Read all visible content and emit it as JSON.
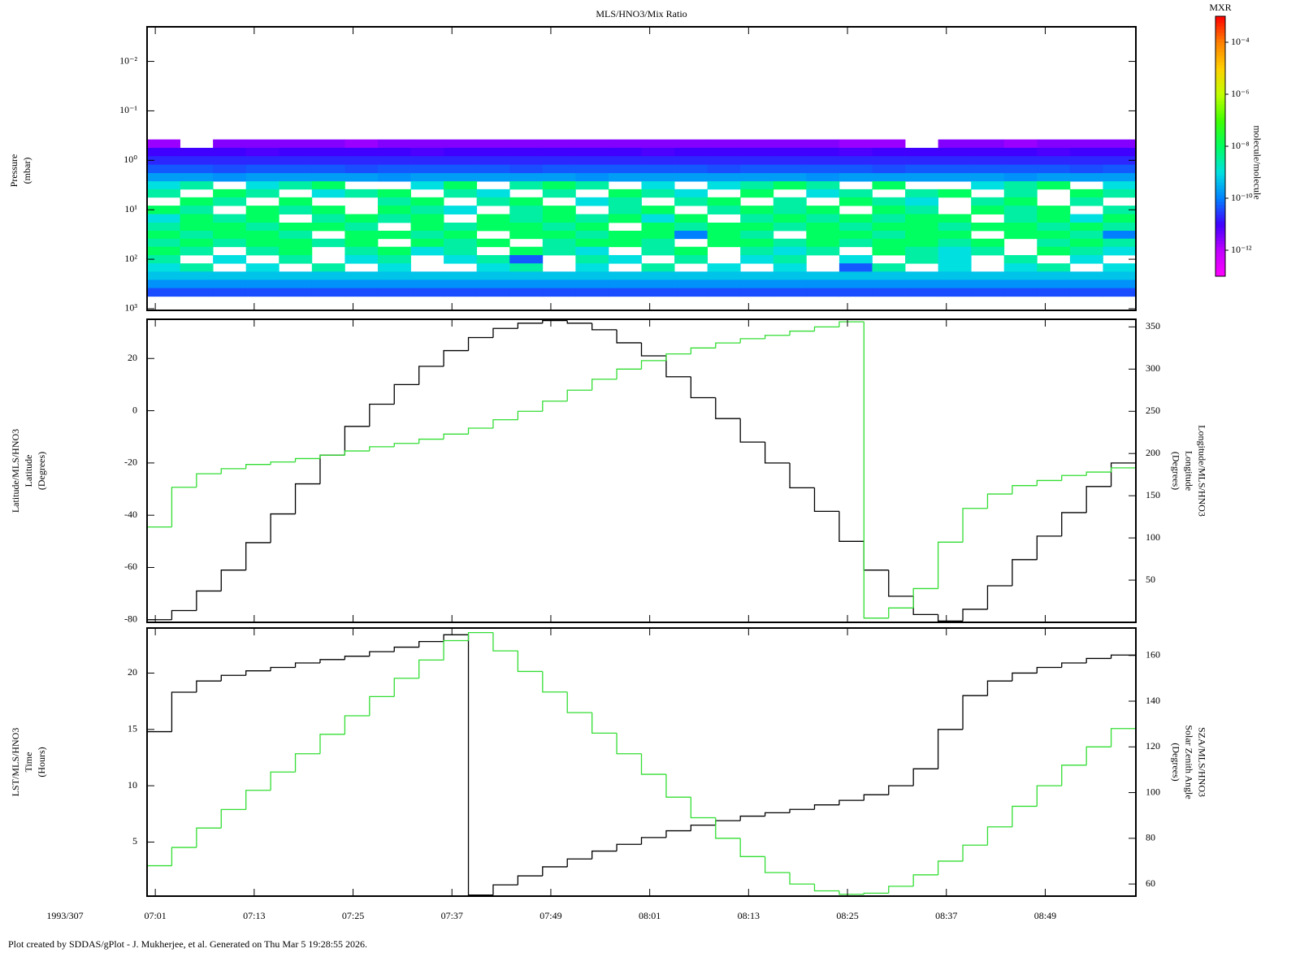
{
  "xaxis": {
    "xlim": [
      "07:00",
      "09:00"
    ],
    "xticks": [
      "07:01",
      "07:13",
      "07:25",
      "07:37",
      "07:49",
      "08:01",
      "08:13",
      "08:25",
      "08:37",
      "08:49"
    ],
    "date_label": "1993/307"
  },
  "footer": "Plot created by SDDAS/gPlot - J. Mukherjee, et al.  Generated on Thu Mar 5 19:28:55 2026.",
  "chart_data": [
    {
      "type": "heatmap",
      "title": "MLS/HNO3/Mix Ratio",
      "ylabel": [
        "Pressure",
        "(mbar)"
      ],
      "log_y": true,
      "y_inverted": true,
      "ylim": [
        0.002,
        1080
      ],
      "yticks": [
        {
          "value": 0.01,
          "label": "10⁻²"
        },
        {
          "value": 0.1,
          "label": "10⁻¹"
        },
        {
          "value": 1,
          "label": "10⁰"
        },
        {
          "value": 10,
          "label": "10¹"
        },
        {
          "value": 100,
          "label": "10²"
        },
        {
          "value": 1000,
          "label": "10³"
        }
      ],
      "x_bins": [
        "07:00",
        "07:04",
        "07:08",
        "07:12",
        "07:16",
        "07:20",
        "07:24",
        "07:28",
        "07:32",
        "07:36",
        "07:40",
        "07:44",
        "07:48",
        "07:52",
        "07:56",
        "08:00",
        "08:04",
        "08:08",
        "08:12",
        "08:16",
        "08:20",
        "08:24",
        "08:28",
        "08:32",
        "08:36",
        "08:40",
        "08:44",
        "08:48",
        "08:52",
        "08:56",
        "09:00"
      ],
      "y": [
        0.46,
        0.68,
        1.0,
        1.5,
        2.2,
        3.2,
        4.6,
        6.8,
        10,
        15,
        22,
        32,
        46,
        68,
        100,
        147,
        215,
        316,
        464
      ],
      "z": [
        [
          2e-12,
          null,
          3e-12,
          3e-12,
          3e-12,
          3e-12,
          2e-12,
          3e-12,
          3e-12,
          3e-12,
          3e-12,
          3e-12,
          3e-12,
          3e-12,
          3e-12,
          3e-12,
          3e-12,
          3e-12,
          3e-12,
          3e-12,
          3e-12,
          2e-12,
          2e-12,
          null,
          3e-12,
          3e-12,
          2e-12,
          3e-12,
          3e-12,
          3e-12
        ],
        [
          1e-11,
          1e-11,
          1e-11,
          8e-12,
          1e-11,
          1e-11,
          1e-11,
          1e-11,
          8e-12,
          1e-11,
          1e-11,
          1e-11,
          1e-11,
          1e-11,
          1e-11,
          8e-12,
          1e-11,
          1e-11,
          1e-11,
          1e-11,
          1e-11,
          8e-12,
          1e-11,
          1e-11,
          1e-11,
          1e-11,
          1e-11,
          8e-12,
          1e-11,
          1e-11
        ],
        [
          2e-11,
          2e-11,
          2e-11,
          2e-11,
          2e-11,
          2e-11,
          2e-11,
          2e-11,
          2e-11,
          2e-11,
          2e-11,
          2e-11,
          2e-11,
          2e-11,
          2e-11,
          2e-11,
          2e-11,
          2e-11,
          2e-11,
          2e-11,
          2e-11,
          2e-11,
          2e-11,
          2e-11,
          2e-11,
          2e-11,
          2e-11,
          2e-11,
          2e-11,
          2e-11
        ],
        [
          5e-11,
          5e-11,
          4e-11,
          5e-11,
          5e-11,
          5e-11,
          4e-11,
          5e-11,
          5e-11,
          5e-11,
          5e-11,
          4e-11,
          5e-11,
          5e-11,
          5e-11,
          5e-11,
          5e-11,
          4e-11,
          5e-11,
          5e-11,
          5e-11,
          5e-11,
          4e-11,
          5e-11,
          5e-11,
          5e-11,
          5e-11,
          5e-11,
          4e-11,
          5e-11
        ],
        [
          2e-10,
          2e-10,
          1.5e-10,
          2e-10,
          2e-10,
          2e-10,
          2e-10,
          1.5e-10,
          2e-10,
          2e-10,
          2e-10,
          2e-10,
          2e-10,
          1.5e-10,
          2e-10,
          2e-10,
          2e-10,
          2e-10,
          2e-10,
          2e-10,
          1.5e-10,
          2e-10,
          2e-10,
          2e-10,
          2e-10,
          2e-10,
          1.5e-10,
          2e-10,
          2e-10,
          2e-10
        ],
        [
          1e-09,
          3e-09,
          null,
          1e-09,
          3e-09,
          1e-08,
          null,
          null,
          1e-09,
          1e-08,
          null,
          3e-09,
          1e-08,
          3e-09,
          null,
          1e-09,
          null,
          1e-09,
          3e-09,
          1e-08,
          3e-09,
          null,
          1e-08,
          null,
          null,
          1e-09,
          3e-09,
          1e-08,
          null,
          1e-09
        ],
        [
          3e-09,
          null,
          1e-08,
          3e-09,
          null,
          1e-09,
          3e-09,
          1e-08,
          null,
          3e-09,
          1e-09,
          null,
          3e-09,
          null,
          1e-08,
          3e-09,
          1e-09,
          null,
          1e-08,
          null,
          1e-09,
          3e-09,
          null,
          3e-09,
          1e-08,
          null,
          3e-09,
          null,
          1e-08,
          3e-09
        ],
        [
          null,
          1e-08,
          3e-09,
          null,
          1e-08,
          null,
          null,
          3e-09,
          1e-08,
          null,
          3e-09,
          1e-08,
          null,
          1e-09,
          3e-09,
          null,
          3e-09,
          1e-08,
          null,
          3e-09,
          null,
          1e-08,
          3e-09,
          1e-09,
          null,
          3e-09,
          1e-08,
          null,
          3e-09,
          null
        ],
        [
          1e-08,
          3e-09,
          null,
          1e-08,
          3e-09,
          1e-08,
          null,
          1e-08,
          3e-09,
          1e-09,
          null,
          3e-09,
          1e-08,
          null,
          3e-09,
          1e-08,
          null,
          3e-09,
          1e-08,
          3e-09,
          1e-08,
          null,
          1e-08,
          3e-09,
          null,
          1e-08,
          3e-09,
          1e-08,
          null,
          3e-09
        ],
        [
          1e-09,
          1e-08,
          3e-09,
          1e-08,
          null,
          3e-09,
          1e-08,
          3e-09,
          1e-08,
          null,
          1e-08,
          3e-09,
          1e-08,
          3e-09,
          1e-08,
          1e-09,
          1e-08,
          null,
          3e-09,
          1e-08,
          3e-09,
          1e-08,
          3e-09,
          1e-08,
          1e-08,
          null,
          3e-09,
          1e-08,
          1e-09,
          1e-08
        ],
        [
          3e-09,
          1e-08,
          1e-08,
          3e-09,
          1e-08,
          1e-08,
          3e-09,
          null,
          1e-08,
          3e-09,
          1e-08,
          1e-08,
          3e-09,
          1e-08,
          null,
          1e-08,
          3e-09,
          1e-08,
          1e-08,
          3e-09,
          1e-08,
          3e-09,
          1e-08,
          1e-08,
          3e-09,
          1e-08,
          1e-08,
          3e-09,
          1e-08,
          3e-09
        ],
        [
          1e-08,
          3e-09,
          1e-08,
          1e-08,
          3e-09,
          null,
          1e-08,
          1e-08,
          3e-09,
          1e-08,
          null,
          1e-08,
          1e-08,
          3e-09,
          1e-08,
          1e-08,
          1e-10,
          1e-08,
          3e-09,
          null,
          1e-08,
          1e-08,
          3e-09,
          1e-08,
          1e-08,
          null,
          1e-08,
          1e-08,
          3e-09,
          1e-10
        ],
        [
          3e-09,
          1e-08,
          3e-09,
          1e-08,
          1e-08,
          3e-09,
          1e-08,
          null,
          1e-08,
          3e-09,
          1e-08,
          null,
          3e-09,
          1e-08,
          1e-08,
          3e-09,
          null,
          1e-08,
          1e-08,
          3e-09,
          1e-08,
          3e-09,
          1e-08,
          1e-08,
          3e-09,
          1e-08,
          null,
          3e-09,
          1e-08,
          3e-09
        ],
        [
          1e-08,
          3e-09,
          null,
          3e-09,
          1e-08,
          null,
          3e-09,
          1e-08,
          1e-09,
          3e-09,
          null,
          1e-08,
          3e-09,
          1e-09,
          null,
          3e-09,
          1e-08,
          null,
          3e-09,
          1e-09,
          3e-09,
          null,
          1e-08,
          3e-09,
          1e-09,
          3e-09,
          null,
          1e-08,
          3e-09,
          1e-09
        ],
        [
          3e-09,
          null,
          1e-09,
          null,
          3e-09,
          null,
          1e-09,
          3e-09,
          null,
          1e-09,
          3e-09,
          5e-11,
          null,
          3e-09,
          1e-09,
          null,
          3e-09,
          null,
          1e-09,
          3e-09,
          null,
          1e-09,
          null,
          3e-09,
          1e-09,
          null,
          3e-09,
          null,
          1e-09,
          null
        ],
        [
          1e-09,
          3e-09,
          null,
          1e-09,
          null,
          3e-09,
          null,
          1e-09,
          null,
          null,
          1e-09,
          3e-09,
          null,
          1e-09,
          null,
          3e-09,
          null,
          1e-09,
          null,
          1e-09,
          null,
          5e-11,
          3e-09,
          null,
          1e-09,
          null,
          1e-09,
          3e-09,
          null,
          1e-09
        ],
        [
          5e-10,
          5e-10,
          5e-10,
          5e-10,
          5e-10,
          5e-10,
          5e-10,
          5e-10,
          5e-10,
          5e-10,
          5e-10,
          5e-10,
          5e-10,
          5e-10,
          5e-10,
          5e-10,
          5e-10,
          5e-10,
          5e-10,
          5e-10,
          5e-10,
          5e-10,
          5e-10,
          5e-10,
          5e-10,
          5e-10,
          5e-10,
          5e-10,
          5e-10,
          5e-10
        ],
        [
          1.5e-10,
          1.5e-10,
          1.5e-10,
          1.5e-10,
          1.5e-10,
          1.5e-10,
          1.5e-10,
          1.5e-10,
          1.5e-10,
          1.5e-10,
          1.5e-10,
          1.5e-10,
          1.5e-10,
          1.5e-10,
          1.5e-10,
          1.5e-10,
          1.5e-10,
          1.5e-10,
          1.5e-10,
          1.5e-10,
          1.5e-10,
          1.5e-10,
          1.5e-10,
          1.5e-10,
          1.5e-10,
          1.5e-10,
          1.5e-10,
          1.5e-10,
          1.5e-10,
          1.5e-10
        ],
        [
          4e-11,
          4e-11,
          4e-11,
          4e-11,
          4e-11,
          4e-11,
          4e-11,
          4e-11,
          4e-11,
          4e-11,
          4e-11,
          4e-11,
          4e-11,
          4e-11,
          4e-11,
          4e-11,
          4e-11,
          4e-11,
          4e-11,
          4e-11,
          4e-11,
          4e-11,
          4e-11,
          4e-11,
          4e-11,
          4e-11,
          4e-11,
          4e-11,
          4e-11,
          4e-11
        ]
      ],
      "colorbar": {
        "title": "MXR",
        "label": "molecule/molecule",
        "log": true,
        "zlim": [
          1e-13,
          0.001
        ],
        "ticks": [
          {
            "value": 0.0001,
            "label": "10⁻⁴"
          },
          {
            "value": 1e-06,
            "label": "10⁻⁶"
          },
          {
            "value": 1e-08,
            "label": "10⁻⁸"
          },
          {
            "value": 1e-10,
            "label": "10⁻¹⁰"
          },
          {
            "value": 1e-12,
            "label": "10⁻¹²"
          }
        ],
        "colormap": [
          "#ff00ff",
          "#c000ff",
          "#4000ff",
          "#0080ff",
          "#00e0e0",
          "#00ff60",
          "#40ff00",
          "#c0ff00",
          "#ffd000",
          "#ff8000",
          "#ff0000"
        ]
      }
    },
    {
      "type": "line",
      "step": true,
      "ylabel": [
        "Latitude/MLS/HNO3",
        "Latitude",
        "(Degrees)"
      ],
      "y2label": [
        "Longitude/MLS/HNO3",
        "Longitude",
        "(Degrees)"
      ],
      "ylim": [
        -81,
        35
      ],
      "yticks": [
        20,
        0,
        -20,
        -40,
        -60,
        -80
      ],
      "y2lim": [
        0,
        359
      ],
      "y2ticks": [
        350,
        300,
        250,
        200,
        150,
        100,
        50
      ],
      "x": [
        "07:00",
        "07:03",
        "07:06",
        "07:09",
        "07:12",
        "07:15",
        "07:18",
        "07:21",
        "07:24",
        "07:27",
        "07:30",
        "07:33",
        "07:36",
        "07:39",
        "07:42",
        "07:45",
        "07:48",
        "07:51",
        "07:54",
        "07:57",
        "08:00",
        "08:03",
        "08:06",
        "08:09",
        "08:12",
        "08:15",
        "08:18",
        "08:21",
        "08:24",
        "08:27",
        "08:30",
        "08:33",
        "08:36",
        "08:39",
        "08:42",
        "08:45",
        "08:48",
        "08:51",
        "08:54",
        "08:57",
        "09:00"
      ],
      "series": [
        {
          "color": "#000000",
          "values": [
            -80,
            -76.5,
            -69,
            -61,
            -50.5,
            -39.5,
            -28,
            -17,
            -6,
            2.5,
            10,
            17,
            23,
            28,
            31.5,
            33.5,
            34.5,
            33.5,
            31,
            26,
            21,
            13,
            5,
            -3,
            -12,
            -20,
            -29.5,
            -38.5,
            -50,
            -61,
            -71,
            -78,
            -80.5,
            -76,
            -67,
            -57,
            -48,
            -39,
            -29,
            -20,
            -11
          ]
        },
        {
          "color": "#33dd33",
          "axis": "y2",
          "values": [
            113,
            160,
            176,
            182,
            187,
            190,
            194,
            198,
            203,
            208,
            212,
            217,
            223,
            230,
            240,
            250,
            262,
            275,
            288,
            300,
            310,
            318,
            325,
            331,
            336,
            340,
            345,
            350,
            356,
            5,
            17,
            40,
            95,
            135,
            152,
            162,
            168,
            174,
            178,
            183,
            189
          ]
        }
      ]
    },
    {
      "type": "line",
      "step": true,
      "ylabel": [
        "LST/MLS/HNO3",
        "Time",
        "(Hours)"
      ],
      "y2label": [
        "SZA/MLS/HNO3",
        "Solar Zenith Angle",
        "(Degrees)"
      ],
      "ylim": [
        0.2,
        24
      ],
      "yticks": [
        20,
        15,
        10,
        5
      ],
      "y2lim": [
        54.7,
        172
      ],
      "y2ticks": [
        160,
        140,
        120,
        100,
        80,
        60
      ],
      "x": [
        "07:00",
        "07:03",
        "07:06",
        "07:09",
        "07:12",
        "07:15",
        "07:18",
        "07:21",
        "07:24",
        "07:27",
        "07:30",
        "07:33",
        "07:36",
        "07:39",
        "07:42",
        "07:45",
        "07:48",
        "07:51",
        "07:54",
        "07:57",
        "08:00",
        "08:03",
        "08:06",
        "08:09",
        "08:12",
        "08:15",
        "08:18",
        "08:21",
        "08:24",
        "08:27",
        "08:30",
        "08:33",
        "08:36",
        "08:39",
        "08:42",
        "08:45",
        "08:48",
        "08:51",
        "08:54",
        "08:57",
        "09:00"
      ],
      "series": [
        {
          "color": "#000000",
          "values": [
            14.8,
            18.3,
            19.3,
            19.8,
            20.2,
            20.5,
            20.9,
            21.2,
            21.5,
            21.9,
            22.3,
            22.8,
            23.4,
            0.3,
            1.2,
            2.0,
            2.8,
            3.5,
            4.2,
            4.8,
            5.4,
            6.0,
            6.5,
            6.9,
            7.3,
            7.6,
            7.9,
            8.3,
            8.7,
            9.2,
            10.0,
            11.5,
            15.0,
            18.0,
            19.3,
            20.0,
            20.5,
            20.9,
            21.3,
            21.6,
            21.9
          ]
        },
        {
          "color": "#33dd33",
          "axis": "y2",
          "values": [
            68,
            76,
            84.5,
            92.6,
            101,
            109,
            117,
            125.5,
            133.6,
            142,
            150,
            158,
            166.5,
            170,
            162,
            153,
            144,
            135,
            126,
            117,
            108,
            98,
            89,
            80,
            72,
            65,
            60,
            57,
            55.5,
            56,
            59,
            64,
            70,
            77,
            85,
            94,
            103,
            112,
            120,
            128,
            136
          ]
        }
      ]
    }
  ]
}
